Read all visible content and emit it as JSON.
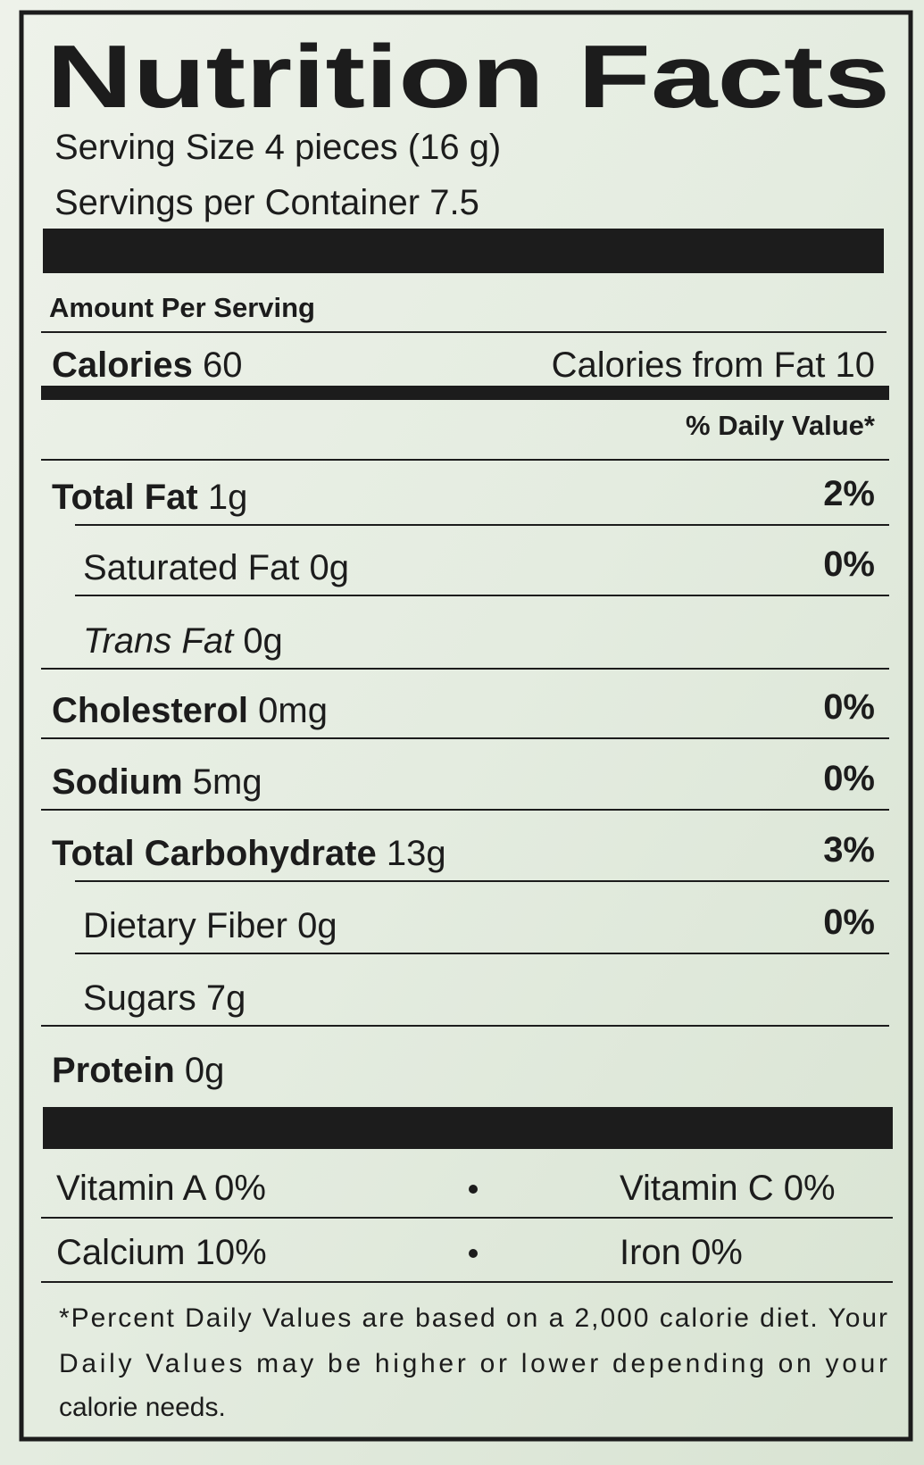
{
  "title": "Nutrition Facts",
  "serving_size": "Serving Size 4 pieces (16 g)",
  "servings_per_container": "Servings per Container 7.5",
  "amount_per_serving": "Amount Per Serving",
  "calories": {
    "label": "Calories",
    "value": "60"
  },
  "calories_from_fat": {
    "label": "Calories from Fat",
    "value": "10"
  },
  "daily_value_header": "% Daily Value*",
  "nutrients": [
    {
      "name": "Total Fat",
      "amount": "1g",
      "dv": "2%",
      "style": "bold"
    },
    {
      "name": "Saturated Fat",
      "amount": "0g",
      "dv": "0%",
      "style": "indent"
    },
    {
      "name": "Trans Fat",
      "amount": "0g",
      "style": "italic-indent"
    },
    {
      "name": "Cholesterol",
      "amount": "0mg",
      "dv": "0%",
      "style": "bold"
    },
    {
      "name": "Sodium",
      "amount": "5mg",
      "dv": "0%",
      "style": "bold"
    },
    {
      "name": "Total Carbohydrate",
      "amount": "13g",
      "dv": "3%",
      "style": "bold"
    },
    {
      "name": "Dietary Fiber",
      "amount": "0g",
      "dv": "0%",
      "style": "indent"
    },
    {
      "name": "Sugars",
      "amount": "7g",
      "style": "indent"
    },
    {
      "name": "Protein",
      "amount": "0g",
      "style": "bold"
    }
  ],
  "vitamins": [
    [
      {
        "name": "Vitamin A",
        "value": "0%"
      },
      {
        "name": "Vitamin C",
        "value": "0%"
      }
    ],
    [
      {
        "name": "Calcium",
        "value": "10%"
      },
      {
        "name": "Iron",
        "value": "0%"
      }
    ]
  ],
  "footnote": [
    "*Percent Daily Values are based on a 2,000 calorie diet. Your",
    "Daily Values may be higher or lower depending on your",
    "calorie needs."
  ]
}
